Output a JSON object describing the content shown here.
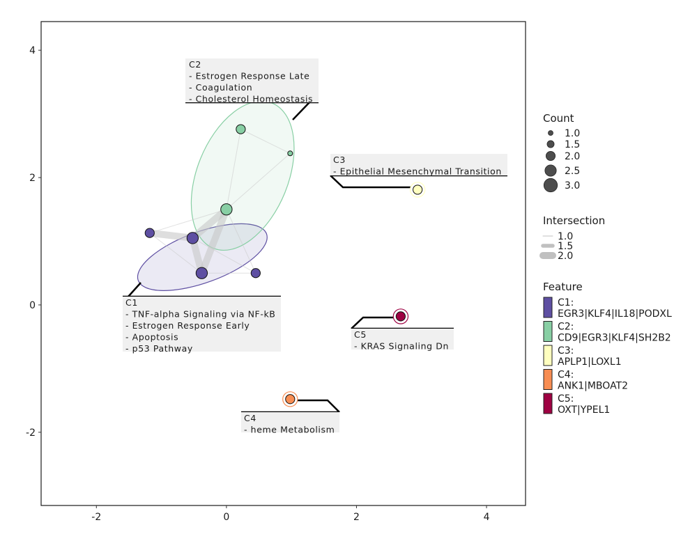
{
  "chart_data": {
    "type": "network",
    "title": "",
    "xlabel": "",
    "ylabel": "",
    "xlim": [
      -2.85,
      4.6
    ],
    "ylim": [
      -3.15,
      4.45
    ],
    "x_ticks": [
      -2,
      0,
      2,
      4
    ],
    "y_ticks": [
      -2,
      0,
      2,
      4
    ],
    "x_tick_labels": [
      "-2",
      "0",
      "2",
      "4"
    ],
    "y_tick_labels": [
      "-2",
      "0",
      "2",
      "4"
    ],
    "grid": false,
    "colors": {
      "C1": "#5E4FA2",
      "C2": "#88CFA4",
      "C3": "#FFFFBF",
      "C4": "#F88D52",
      "C5": "#9E0142"
    },
    "nodes": [
      {
        "id": "c1a",
        "cluster": "C1",
        "x": -1.18,
        "y": 1.13,
        "count": 2.0
      },
      {
        "id": "c1b",
        "cluster": "C1",
        "x": -0.52,
        "y": 1.05,
        "count": 2.5
      },
      {
        "id": "c1c",
        "cluster": "C1",
        "x": -0.38,
        "y": 0.5,
        "count": 2.5
      },
      {
        "id": "c1d",
        "cluster": "C1",
        "x": 0.45,
        "y": 0.5,
        "count": 2.0
      },
      {
        "id": "c2a",
        "cluster": "C2",
        "x": 0.0,
        "y": 1.5,
        "count": 2.5
      },
      {
        "id": "c2b",
        "cluster": "C2",
        "x": 0.22,
        "y": 2.76,
        "count": 2.0
      },
      {
        "id": "c2c",
        "cluster": "C2",
        "x": 0.98,
        "y": 2.38,
        "count": 1.0
      },
      {
        "id": "c3a",
        "cluster": "C3",
        "x": 2.94,
        "y": 1.81,
        "count": 2.0
      },
      {
        "id": "c4a",
        "cluster": "C4",
        "x": 0.98,
        "y": -1.48,
        "count": 2.0
      },
      {
        "id": "c5a",
        "cluster": "C5",
        "x": 2.68,
        "y": -0.18,
        "count": 2.0
      }
    ],
    "edges": [
      {
        "from": "c1a",
        "to": "c1b",
        "intersection": 2.0
      },
      {
        "from": "c1b",
        "to": "c2a",
        "intersection": 2.0
      },
      {
        "from": "c1c",
        "to": "c2a",
        "intersection": 2.0
      },
      {
        "from": "c1b",
        "to": "c1c",
        "intersection": 2.0
      },
      {
        "from": "c1a",
        "to": "c2a",
        "intersection": 1.0
      },
      {
        "from": "c1a",
        "to": "c1c",
        "intersection": 1.0
      },
      {
        "from": "c1b",
        "to": "c1d",
        "intersection": 1.0
      },
      {
        "from": "c1c",
        "to": "c1d",
        "intersection": 1.0
      },
      {
        "from": "c2a",
        "to": "c1d",
        "intersection": 1.0
      },
      {
        "from": "c2a",
        "to": "c2b",
        "intersection": 1.0
      },
      {
        "from": "c2a",
        "to": "c2c",
        "intersection": 1.0
      },
      {
        "from": "c2b",
        "to": "c2c",
        "intersection": 1.0
      }
    ],
    "ellipses": [
      {
        "cluster": "C1",
        "cx": -0.37,
        "cy": 0.75,
        "rx": 1.05,
        "ry": 0.4,
        "angle_deg": -20
      },
      {
        "cluster": "C2",
        "cx": 0.25,
        "cy": 2.03,
        "rx": 0.7,
        "ry": 1.23,
        "angle_deg": 22
      }
    ],
    "annotations": [
      {
        "cluster": "C1",
        "title": "C1",
        "lines": [
          "- TNF-alpha Signaling via NF-kB",
          "- Estrogen Response Early",
          "- Apoptosis",
          "- p53 Pathway"
        ]
      },
      {
        "cluster": "C2",
        "title": "C2",
        "lines": [
          "- Estrogen Response Late",
          "- Coagulation",
          "- Cholesterol Homeostasis"
        ]
      },
      {
        "cluster": "C3",
        "title": "C3",
        "lines": [
          "- Epithelial Mesenchymal Transition"
        ]
      },
      {
        "cluster": "C4",
        "title": "C4",
        "lines": [
          "- heme Metabolism"
        ]
      },
      {
        "cluster": "C5",
        "title": "C5",
        "lines": [
          "- KRAS Signaling Dn"
        ]
      }
    ],
    "legend": {
      "position": "right",
      "count": {
        "title": "Count",
        "values": [
          1.0,
          1.5,
          2.0,
          2.5,
          3.0
        ],
        "labels": [
          "1.0",
          "1.5",
          "2.0",
          "2.5",
          "3.0"
        ]
      },
      "intersection": {
        "title": "Intersection",
        "values": [
          1.0,
          1.5,
          2.0
        ],
        "labels": [
          "1.0",
          "1.5",
          "2.0"
        ]
      },
      "feature": {
        "title": "Feature",
        "items": [
          {
            "cluster": "C1",
            "label1": "C1:",
            "label2": "EGR3|KLF4|IL18|PODXL"
          },
          {
            "cluster": "C2",
            "label1": "C2:",
            "label2": "CD9|EGR3|KLF4|SH2B2"
          },
          {
            "cluster": "C3",
            "label1": "C3:",
            "label2": "APLP1|LOXL1"
          },
          {
            "cluster": "C4",
            "label1": "C4:",
            "label2": "ANK1|MBOAT2"
          },
          {
            "cluster": "C5",
            "label1": "C5:",
            "label2": "OXT|YPEL1"
          }
        ]
      }
    }
  }
}
